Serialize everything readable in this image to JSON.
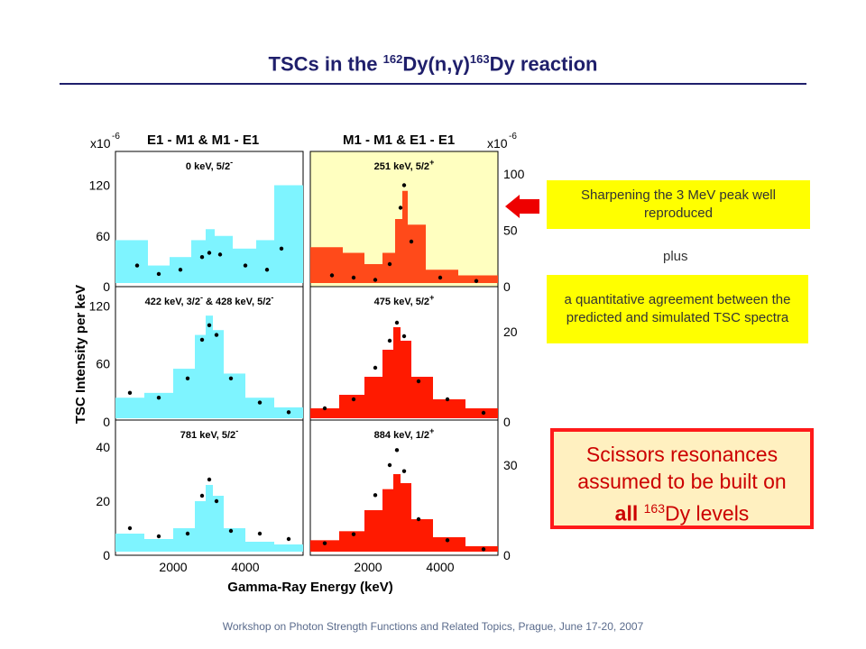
{
  "title": {
    "prefix": "TSCs in the ",
    "sup1": "162",
    "mid": "Dy(n,γ)",
    "sup2": "163",
    "suffix": "Dy reaction"
  },
  "annotations": {
    "box1": "Sharpening the 3 MeV peak well reproduced",
    "plus": "plus",
    "box2": "a quantitative agreement between the predicted and simulated TSC spectra",
    "scissors_line1": "Scissors resonances assumed to be built on",
    "scissors_bold": "all",
    "scissors_sup": "163",
    "scissors_tail": "Dy levels"
  },
  "footer": "Workshop on Photon Strength Functions and Related Topics, Prague, June 17-20, 2007",
  "colors": {
    "cyan": "#7ef4ff",
    "red": "#ff1a00",
    "orange_red": "#ff4a1a",
    "highlight": "#ffffc0",
    "title": "#1f1f6b"
  },
  "chart_data": {
    "type": "bar",
    "xlabel": "Gamma-Ray Energy (keV)",
    "ylabel": "TSC Intensity per keV",
    "col_headers": [
      "E1 - M1  &  M1 - E1",
      "M1 - M1  &  E1 - E1"
    ],
    "left_multiplier": "x10",
    "left_exp": "-6",
    "right_multiplier": "x10",
    "right_exp": "-6",
    "xlim": [
      400,
      5600
    ],
    "xticks": [
      2000,
      4000
    ],
    "panels": [
      {
        "label": "0 keV, 5/2",
        "parity": "-",
        "row": 0,
        "col": 0,
        "color": "cyan",
        "ylim": [
          0,
          160
        ],
        "yticks": [
          0,
          60,
          120
        ],
        "x": [
          1000,
          1600,
          2200,
          2800,
          3000,
          3300,
          4000,
          4600,
          5000
        ],
        "sim": [
          55,
          25,
          35,
          55,
          68,
          60,
          45,
          55,
          120
        ],
        "exp": [
          25,
          15,
          20,
          35,
          40,
          38,
          25,
          20,
          45
        ]
      },
      {
        "label": "251 keV, 5/2",
        "parity": "+",
        "row": 0,
        "col": 1,
        "color": "orange_red",
        "ylim": [
          0,
          120
        ],
        "yticks": [
          0,
          50,
          100
        ],
        "x": [
          1000,
          1600,
          2200,
          2600,
          2900,
          3000,
          3200,
          4000,
          5000
        ],
        "sim": [
          35,
          30,
          20,
          30,
          60,
          85,
          55,
          15,
          10
        ],
        "exp": [
          10,
          8,
          6,
          20,
          70,
          90,
          40,
          8,
          5
        ]
      },
      {
        "label": "422 keV, 3/2",
        "parity": "-",
        "extra": " & 428 keV, 5/2",
        "extra_parity": "-",
        "row": 1,
        "col": 0,
        "color": "cyan",
        "ylim": [
          0,
          140
        ],
        "yticks": [
          0,
          60,
          120
        ],
        "x": [
          800,
          1600,
          2400,
          2800,
          3000,
          3200,
          3600,
          4400,
          5200
        ],
        "sim": [
          25,
          30,
          55,
          90,
          110,
          95,
          50,
          25,
          15
        ],
        "exp": [
          30,
          25,
          45,
          85,
          100,
          90,
          45,
          20,
          10
        ]
      },
      {
        "label": "475 keV, 5/2",
        "parity": "+",
        "row": 1,
        "col": 1,
        "color": "red",
        "ylim": [
          0,
          30
        ],
        "yticks": [
          0,
          20
        ],
        "x": [
          800,
          1600,
          2200,
          2600,
          2800,
          3000,
          3400,
          4200,
          5200
        ],
        "sim": [
          3,
          6,
          10,
          16,
          21,
          18,
          10,
          5,
          3
        ],
        "exp": [
          3,
          5,
          12,
          18,
          22,
          19,
          9,
          5,
          2
        ]
      },
      {
        "label": "781 keV, 5/2",
        "parity": "-",
        "row": 2,
        "col": 0,
        "color": "cyan",
        "ylim": [
          0,
          50
        ],
        "yticks": [
          0,
          20,
          40
        ],
        "x": [
          800,
          1600,
          2400,
          2800,
          3000,
          3200,
          3600,
          4400,
          5200
        ],
        "sim": [
          8,
          6,
          10,
          20,
          26,
          22,
          10,
          5,
          4
        ],
        "exp": [
          10,
          7,
          8,
          22,
          28,
          20,
          9,
          8,
          6
        ]
      },
      {
        "label": "884 keV, 1/2",
        "parity": "+",
        "row": 2,
        "col": 1,
        "color": "red",
        "ylim": [
          0,
          45
        ],
        "yticks": [
          0,
          30
        ],
        "x": [
          800,
          1600,
          2200,
          2600,
          2800,
          3000,
          3400,
          4200,
          5200
        ],
        "sim": [
          5,
          8,
          15,
          22,
          27,
          24,
          12,
          6,
          3
        ],
        "exp": [
          4,
          7,
          20,
          30,
          35,
          28,
          12,
          5,
          2
        ]
      }
    ]
  }
}
